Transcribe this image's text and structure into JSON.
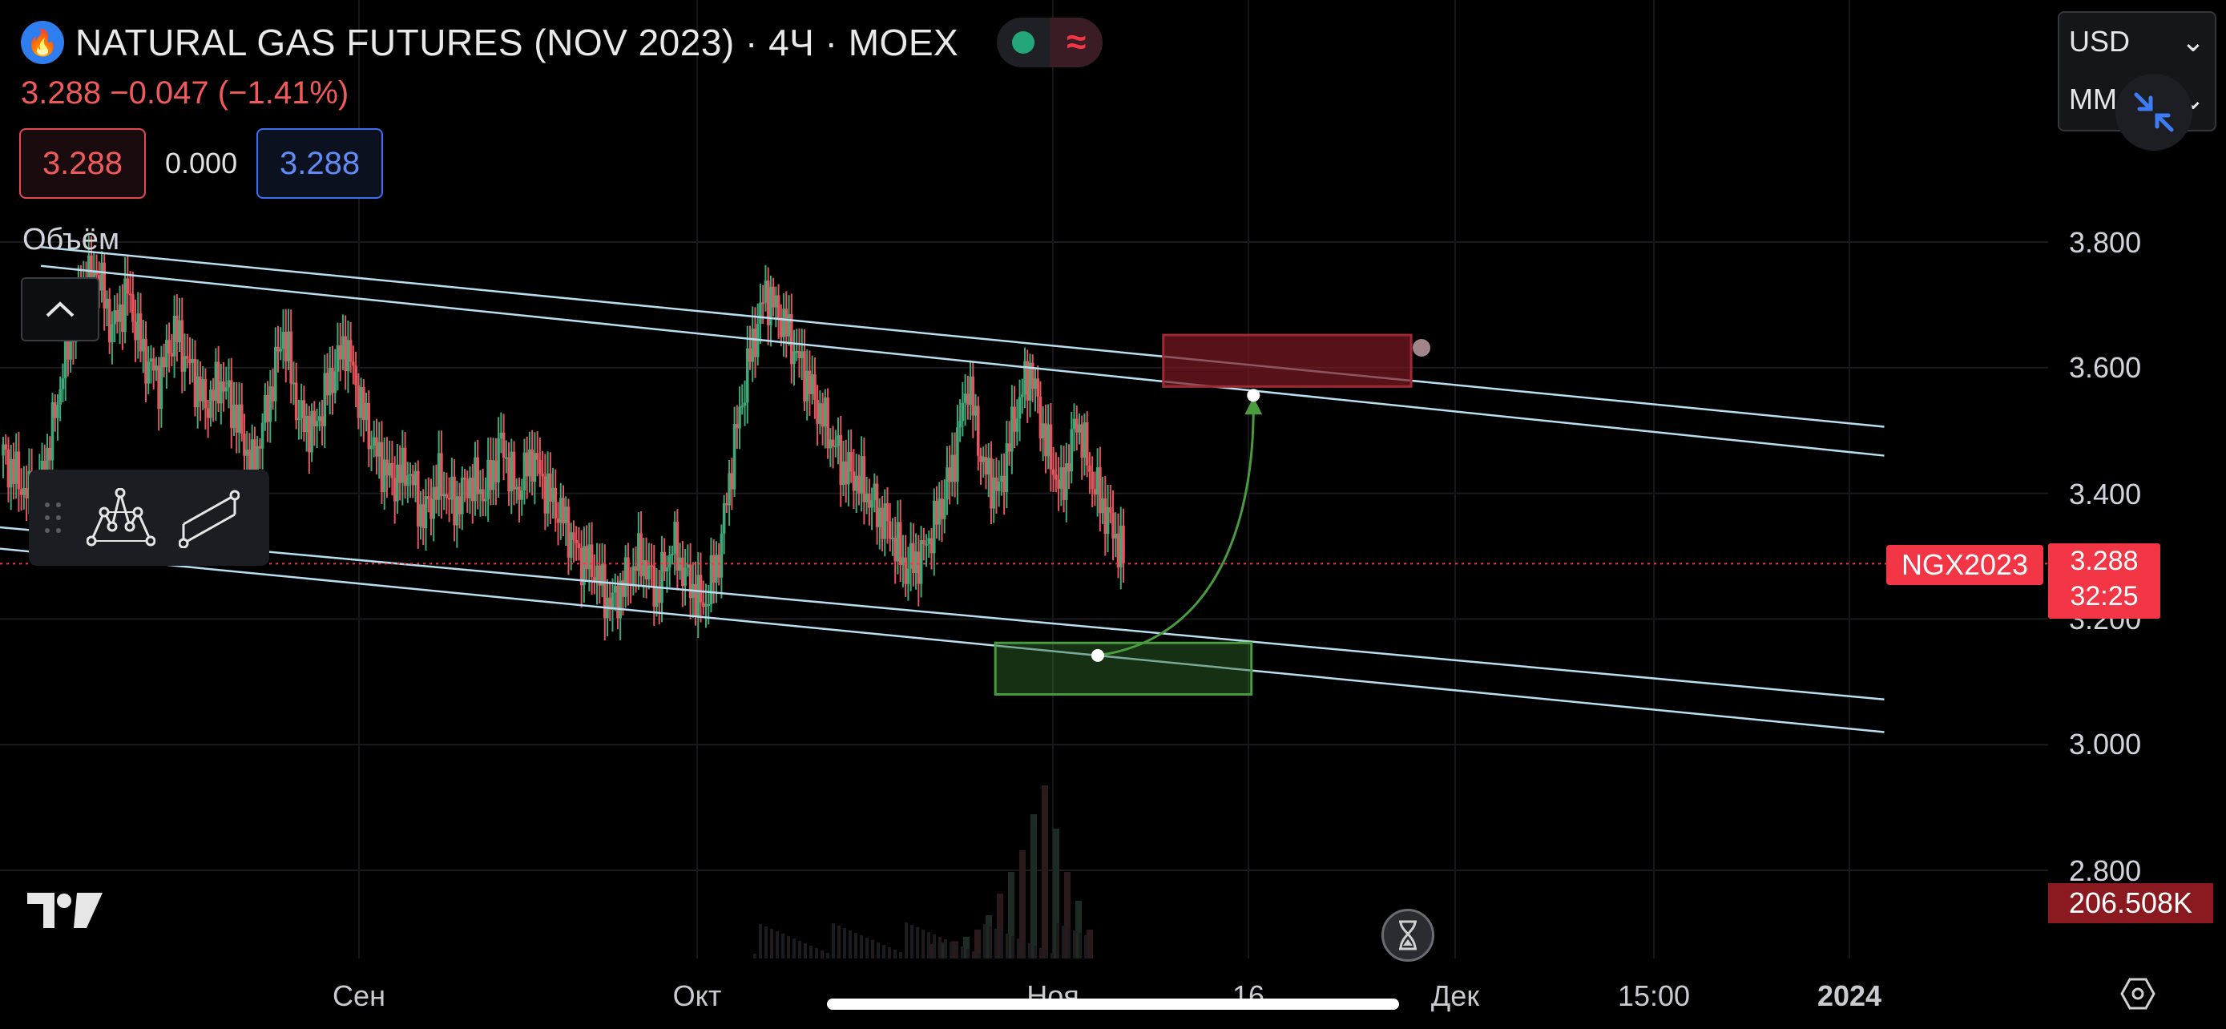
{
  "header": {
    "title": "NATURAL GAS FUTURES (NOV 2023) · 4Ч · MOEX",
    "change": "3.288  −0.047 (−1.41%)",
    "sell_price": "3.288",
    "spread": "0.000",
    "buy_price": "3.288"
  },
  "indicators": {
    "volume_title": "Объём"
  },
  "currency_menu": {
    "currency": "USD",
    "unit": "MM"
  },
  "price_badge": {
    "symbol": "NGX2023",
    "price": "3.288",
    "countdown": "32:25"
  },
  "volume_badge": "206.508K",
  "colors": {
    "up": "#3fa878",
    "down": "#e5555d",
    "channel": "#b8dff0",
    "target_zone": "#7a1a22",
    "entry_zone": "#2e6b2a",
    "price_line": "#f23645"
  },
  "chart_data": {
    "type": "candlestick",
    "title": "NATURAL GAS FUTURES (NOV 2023) · 4Ч · MOEX",
    "y_ticks": [
      "3.800",
      "3.600",
      "3.400",
      "3.200",
      "3.000",
      "2.800"
    ],
    "x_ticks": [
      "Сен",
      "Окт",
      "Ноя",
      "16",
      "Дек",
      "15:00",
      "2024"
    ],
    "ylim": [
      2.74,
      3.86
    ],
    "last_price": 3.288,
    "price_path": [
      3.46,
      3.42,
      3.38,
      3.48,
      3.62,
      3.72,
      3.76,
      3.66,
      3.72,
      3.62,
      3.58,
      3.66,
      3.6,
      3.54,
      3.58,
      3.52,
      3.44,
      3.54,
      3.66,
      3.52,
      3.5,
      3.58,
      3.64,
      3.54,
      3.46,
      3.42,
      3.44,
      3.36,
      3.42,
      3.38,
      3.42,
      3.4,
      3.48,
      3.4,
      3.46,
      3.4,
      3.36,
      3.3,
      3.28,
      3.22,
      3.26,
      3.3,
      3.24,
      3.32,
      3.26,
      3.22,
      3.3,
      3.48,
      3.62,
      3.72,
      3.68,
      3.62,
      3.56,
      3.5,
      3.44,
      3.42,
      3.38,
      3.34,
      3.28,
      3.3,
      3.36,
      3.44,
      3.58,
      3.44,
      3.4,
      3.52,
      3.6,
      3.48,
      3.4,
      3.52,
      3.42,
      3.36,
      3.3
    ],
    "channel_lines": [
      {
        "x": [
          0.02,
          0.92
        ],
        "y": [
          3.792,
          3.506
        ]
      },
      {
        "x": [
          0.02,
          0.92
        ],
        "y": [
          3.762,
          3.46
        ]
      },
      {
        "x": [
          0.0,
          0.92
        ],
        "y": [
          3.346,
          3.072
        ]
      },
      {
        "x": [
          0.0,
          0.92
        ],
        "y": [
          3.312,
          3.02
        ]
      }
    ],
    "zones": [
      {
        "name": "target",
        "x": [
          0.568,
          0.689
        ],
        "y": [
          3.652,
          3.57
        ]
      },
      {
        "name": "entry",
        "x": [
          0.486,
          0.611
        ],
        "y": [
          3.162,
          3.08
        ]
      }
    ],
    "projection_arrow": {
      "from": [
        0.536,
        3.142
      ],
      "to": [
        0.612,
        3.556
      ]
    },
    "volume": [
      20,
      22,
      24,
      30,
      40,
      60,
      90,
      120,
      150,
      200,
      240,
      180,
      120,
      80,
      40
    ]
  }
}
